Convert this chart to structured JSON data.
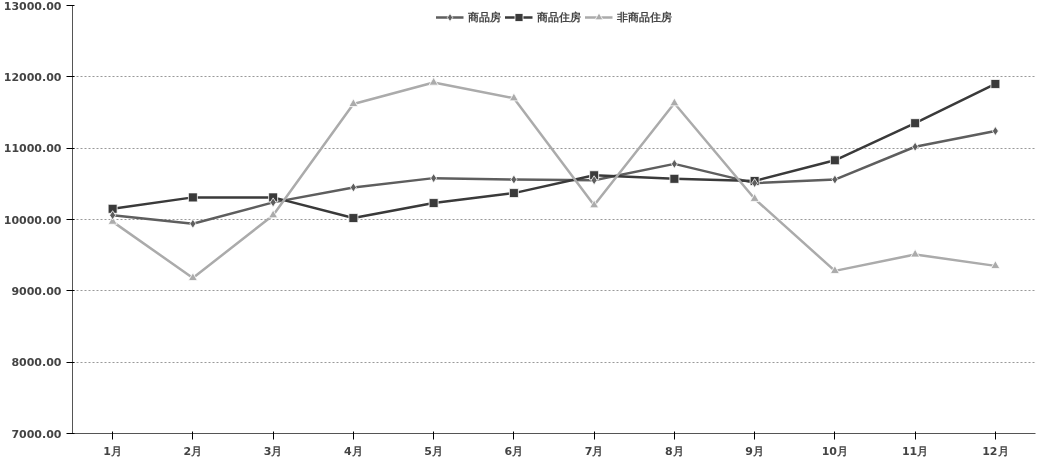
{
  "chart_data": {
    "type": "line",
    "categories": [
      "1月",
      "2月",
      "3月",
      "4月",
      "5月",
      "6月",
      "7月",
      "8月",
      "9月",
      "10月",
      "11月",
      "12月"
    ],
    "series": [
      {
        "name": "商品房",
        "color": "#5e5e5e",
        "marker": "diamond",
        "values": [
          10060,
          9940,
          10240,
          10450,
          10580,
          10560,
          10550,
          10780,
          10510,
          10560,
          11020,
          11240
        ]
      },
      {
        "name": "商品住房",
        "color": "#3a3a3a",
        "marker": "square",
        "values": [
          10150,
          10310,
          10310,
          10020,
          10230,
          10370,
          10620,
          10570,
          10540,
          10830,
          11350,
          11900
        ]
      },
      {
        "name": "非商品住房",
        "color": "#ababab",
        "marker": "triangle",
        "values": [
          9970,
          9180,
          10060,
          11620,
          11920,
          11700,
          10200,
          11630,
          10290,
          9280,
          9510,
          9350
        ]
      }
    ],
    "ylim": [
      7000,
      13000
    ],
    "yticks": [
      {
        "value": 7000,
        "label": "7000.00"
      },
      {
        "value": 8000,
        "label": "8000.00"
      },
      {
        "value": 9000,
        "label": "9000.00"
      },
      {
        "value": 10000,
        "label": "10000.00"
      },
      {
        "value": 11000,
        "label": "11000.00"
      },
      {
        "value": 12000,
        "label": "12000.00"
      },
      {
        "value": 13000,
        "label": "13000.00"
      }
    ],
    "grid": "y",
    "legend": "top",
    "line_style": "solid"
  }
}
